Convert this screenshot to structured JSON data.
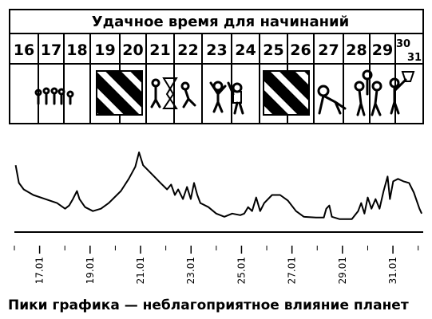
{
  "header": {
    "title": "Удачное время для начинаний",
    "days": [
      "16",
      "17",
      "18",
      "19",
      "20",
      "21",
      "22",
      "23",
      "24",
      "25",
      "26",
      "27",
      "28",
      "29",
      "30",
      "31"
    ]
  },
  "chart_data": {
    "type": "line",
    "color": "#000000",
    "x": [
      16.05,
      16.18,
      16.37,
      16.75,
      17.22,
      17.69,
      18.01,
      18.17,
      18.32,
      18.48,
      18.58,
      18.8,
      19.11,
      19.43,
      19.74,
      20.22,
      20.53,
      20.79,
      20.94,
      21.1,
      21.32,
      21.54,
      21.79,
      22.05,
      22.21,
      22.36,
      22.49,
      22.68,
      22.84,
      22.99,
      23.12,
      23.25,
      23.37,
      23.69,
      24.0,
      24.32,
      24.63,
      24.95,
      25.11,
      25.26,
      25.42,
      25.58,
      25.74,
      25.9,
      26.21,
      26.53,
      26.84,
      27.16,
      27.47,
      27.95,
      28.26,
      28.36,
      28.48,
      28.58,
      28.89,
      29.37,
      29.62,
      29.74,
      29.87,
      30.0,
      30.15,
      30.31,
      30.47,
      30.63,
      30.79,
      30.88,
      31.01,
      31.2,
      31.42,
      31.64,
      31.83,
      32.05,
      32.14
    ],
    "values": [
      83,
      61,
      53,
      46,
      41,
      36,
      29,
      33,
      41,
      51,
      41,
      31,
      26,
      29,
      36,
      51,
      66,
      81,
      99,
      83,
      76,
      69,
      61,
      53,
      59,
      46,
      53,
      41,
      56,
      41,
      61,
      46,
      36,
      31,
      23,
      19,
      23,
      21,
      23,
      31,
      26,
      43,
      26,
      36,
      46,
      46,
      39,
      26,
      19,
      18,
      18,
      29,
      33,
      19,
      16,
      16,
      26,
      36,
      23,
      43,
      29,
      41,
      29,
      51,
      69,
      41,
      63,
      66,
      63,
      61,
      49,
      29,
      23
    ],
    "xlim": [
      16,
      32.2
    ],
    "ylim": [
      0,
      100
    ],
    "xticks": [
      {
        "value": 17,
        "label": "17.01"
      },
      {
        "value": 19,
        "label": "19.01"
      },
      {
        "value": 21,
        "label": "21.01"
      },
      {
        "value": 23,
        "label": "23.01"
      },
      {
        "value": 25,
        "label": "25.01"
      },
      {
        "value": 27,
        "label": "27.01"
      },
      {
        "value": 29,
        "label": "29.01"
      },
      {
        "value": 31,
        "label": "31.01"
      }
    ],
    "xminorticks": [
      16,
      18,
      20,
      22,
      24,
      26,
      28,
      30,
      32
    ]
  },
  "caption": "Пики графика — неблагоприятное влияние планет"
}
